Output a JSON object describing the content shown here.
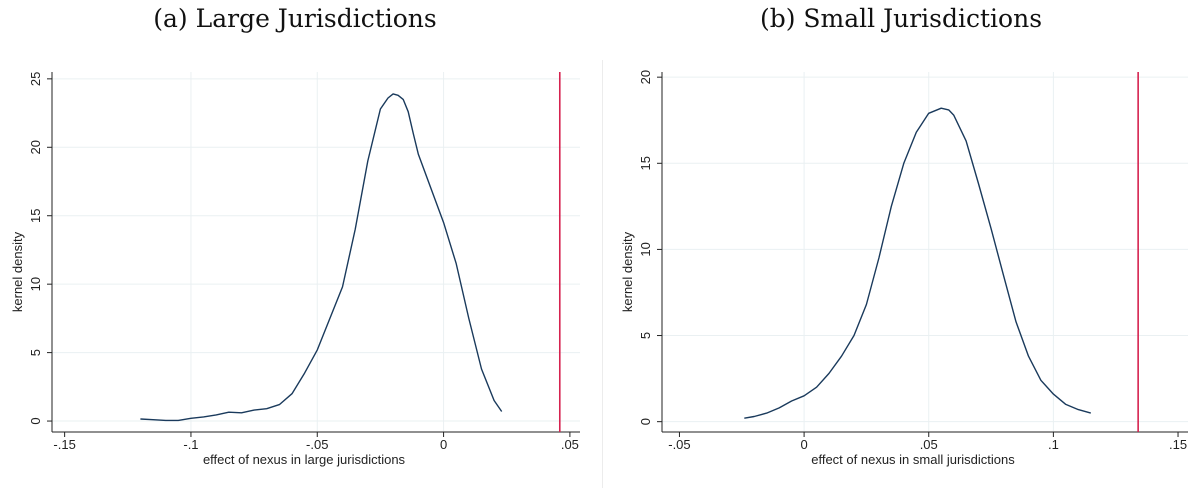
{
  "chart_data": [
    {
      "type": "line",
      "title": "(a) Large Jurisdictions",
      "xlabel": "effect of nexus in large jurisdictions",
      "ylabel": "kernel density",
      "xlim": [
        -0.155,
        0.054
      ],
      "ylim": [
        -0.8,
        25.5
      ],
      "xticks": [
        -0.15,
        -0.1,
        -0.05,
        0,
        0.05
      ],
      "xtick_labels": [
        "-.15",
        "-.1",
        "-.05",
        "0",
        ".05"
      ],
      "yticks": [
        0,
        5,
        10,
        15,
        20,
        25
      ],
      "ytick_labels": [
        "0",
        "5",
        "10",
        "15",
        "20",
        "25"
      ],
      "grid": true,
      "legend": "none",
      "line_color": "#1a3a5c",
      "vline": {
        "x": 0.046,
        "color": "#d6224f"
      },
      "series": [
        {
          "x": [
            -0.12,
            -0.115,
            -0.11,
            -0.105,
            -0.1,
            -0.095,
            -0.09,
            -0.085,
            -0.08,
            -0.075,
            -0.07,
            -0.065,
            -0.06,
            -0.055,
            -0.05,
            -0.045,
            -0.04,
            -0.035,
            -0.03,
            -0.025,
            -0.022,
            -0.02,
            -0.018,
            -0.016,
            -0.014,
            -0.012,
            -0.01,
            -0.005,
            0,
            0.005,
            0.01,
            0.015,
            0.02,
            0.023
          ],
          "y": [
            0.15,
            0.1,
            0.05,
            0.05,
            0.2,
            0.3,
            0.45,
            0.65,
            0.6,
            0.8,
            0.9,
            1.2,
            2.0,
            3.5,
            5.2,
            7.5,
            9.8,
            14.0,
            19.0,
            22.8,
            23.6,
            23.9,
            23.8,
            23.5,
            22.6,
            21.0,
            19.5,
            17.0,
            14.5,
            11.5,
            7.5,
            3.8,
            1.5,
            0.7
          ]
        }
      ]
    },
    {
      "type": "line",
      "title": "(b) Small Jurisdictions",
      "xlabel": "effect of nexus in small jurisdictions",
      "ylabel": "kernel density",
      "xlim": [
        -0.057,
        0.154
      ],
      "ylim": [
        -0.6,
        20.3
      ],
      "xticks": [
        -0.05,
        0,
        0.05,
        0.1,
        0.15
      ],
      "xtick_labels": [
        "-.05",
        "0",
        ".05",
        ".1",
        ".15"
      ],
      "yticks": [
        0,
        5,
        10,
        15,
        20
      ],
      "ytick_labels": [
        "0",
        "5",
        "10",
        "15",
        "20"
      ],
      "grid": true,
      "legend": "none",
      "line_color": "#1a3a5c",
      "vline": {
        "x": 0.134,
        "color": "#d6224f"
      },
      "series": [
        {
          "x": [
            -0.024,
            -0.02,
            -0.015,
            -0.01,
            -0.005,
            0,
            0.005,
            0.01,
            0.015,
            0.02,
            0.025,
            0.03,
            0.035,
            0.04,
            0.045,
            0.05,
            0.055,
            0.058,
            0.06,
            0.065,
            0.07,
            0.075,
            0.08,
            0.085,
            0.09,
            0.095,
            0.1,
            0.105,
            0.11,
            0.115
          ],
          "y": [
            0.2,
            0.3,
            0.5,
            0.8,
            1.2,
            1.5,
            2.0,
            2.8,
            3.8,
            5.0,
            6.8,
            9.5,
            12.5,
            15.0,
            16.8,
            17.9,
            18.2,
            18.1,
            17.8,
            16.3,
            13.8,
            11.2,
            8.5,
            5.8,
            3.8,
            2.4,
            1.6,
            1.0,
            0.7,
            0.5
          ]
        }
      ]
    }
  ]
}
